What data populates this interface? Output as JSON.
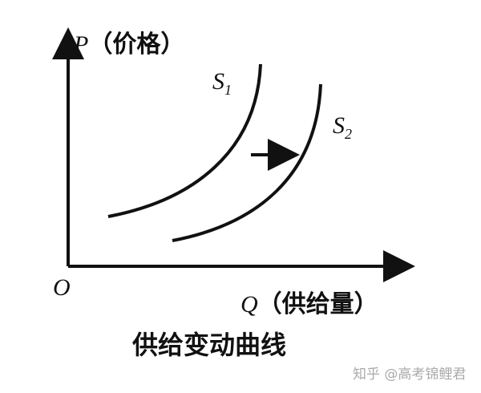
{
  "y_axis": {
    "symbol": "P",
    "label": "（价格）"
  },
  "x_axis": {
    "symbol": "Q",
    "label": "（供给量）"
  },
  "origin": "O",
  "curves": [
    {
      "name": "S",
      "sub": "1"
    },
    {
      "name": "S",
      "sub": "2"
    }
  ],
  "shift_arrow": "right",
  "caption": "供给变动曲线",
  "watermark": "知乎 @高考锦鲤君"
}
